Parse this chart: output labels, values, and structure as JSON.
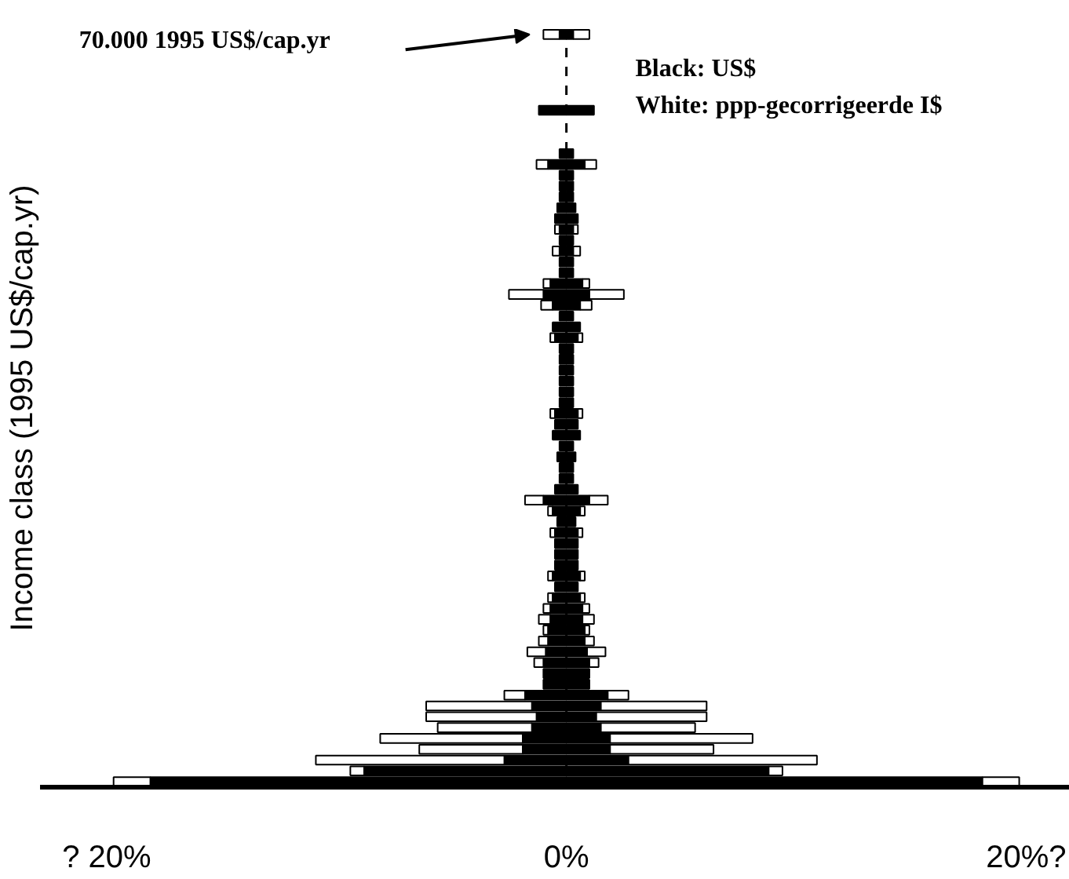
{
  "chart_data": {
    "type": "bar",
    "orientation": "horizontal",
    "stacked": true,
    "ylabel": "Income class (1995 US$/cap.yr)",
    "categories": [
      null,
      null,
      null,
      null,
      null,
      null,
      null,
      null,
      null,
      null,
      null,
      null,
      null,
      null,
      null,
      null,
      null,
      null,
      null,
      null,
      null,
      null,
      null,
      null,
      null,
      null,
      null,
      null,
      null,
      null,
      null,
      null,
      null,
      null,
      null,
      null,
      null,
      null,
      null,
      null,
      null,
      null,
      null,
      null,
      null,
      null,
      null,
      null,
      null,
      null,
      null,
      null,
      null,
      null,
      null,
      null,
      null,
      null,
      null,
      null,
      null,
      null,
      null,
      null,
      null,
      null,
      null,
      null,
      null,
      null
    ],
    "series": [
      {
        "color": "#000000",
        "values": [
          -0.3,
          null,
          null,
          null,
          null,
          null,
          null,
          -1.2,
          null,
          null,
          null,
          -0.3,
          -0.8,
          -0.3,
          -0.3,
          -0.3,
          -0.4,
          -0.5,
          -0.3,
          -0.3,
          -0.3,
          -0.3,
          -0.3,
          -0.7,
          -1.0,
          -0.6,
          -0.3,
          -0.6,
          -0.5,
          -0.3,
          -0.3,
          -0.3,
          -0.3,
          -0.3,
          -0.3,
          -0.5,
          -0.5,
          -0.6,
          -0.3,
          -0.4,
          -0.3,
          -0.3,
          -0.5,
          -1.0,
          -0.6,
          -0.4,
          -0.5,
          -0.5,
          -0.5,
          -0.5,
          -0.6,
          -0.5,
          -0.6,
          -0.7,
          -0.7,
          -0.8,
          -0.8,
          -0.9,
          -1.0,
          -1.0,
          -1.0,
          -1.8,
          -1.5,
          -1.3,
          -1.5,
          -1.9,
          -1.9,
          -2.7,
          -8.8,
          -18.1
        ]
      },
      {
        "color": "#ffffff",
        "values": [
          -0.7,
          null,
          null,
          null,
          null,
          null,
          null,
          null,
          null,
          null,
          null,
          null,
          -0.5,
          null,
          null,
          null,
          null,
          null,
          -0.2,
          null,
          -0.3,
          null,
          null,
          -0.3,
          -1.5,
          -0.5,
          null,
          null,
          -0.2,
          null,
          null,
          null,
          null,
          null,
          null,
          -0.2,
          null,
          null,
          null,
          null,
          null,
          null,
          null,
          -0.8,
          -0.2,
          null,
          -0.2,
          null,
          null,
          null,
          -0.2,
          null,
          -0.2,
          -0.3,
          -0.5,
          -0.2,
          -0.4,
          -0.8,
          -0.4,
          null,
          null,
          -0.9,
          -4.6,
          -4.8,
          -4.1,
          -6.2,
          -4.5,
          -8.2,
          -0.6,
          -1.6
        ]
      },
      {
        "color": "#000000",
        "values": [
          0.3,
          null,
          null,
          null,
          null,
          null,
          null,
          1.2,
          null,
          null,
          null,
          0.3,
          0.8,
          0.3,
          0.3,
          0.3,
          0.4,
          0.5,
          0.3,
          0.3,
          0.3,
          0.3,
          0.3,
          0.7,
          1.0,
          0.6,
          0.3,
          0.6,
          0.5,
          0.3,
          0.3,
          0.3,
          0.3,
          0.3,
          0.3,
          0.5,
          0.5,
          0.6,
          0.3,
          0.4,
          0.3,
          0.3,
          0.5,
          1.0,
          0.6,
          0.4,
          0.5,
          0.5,
          0.5,
          0.5,
          0.6,
          0.5,
          0.6,
          0.7,
          0.7,
          0.8,
          0.8,
          0.9,
          1.0,
          1.0,
          1.0,
          1.8,
          1.5,
          1.3,
          1.5,
          1.9,
          1.9,
          2.7,
          8.8,
          18.1
        ]
      },
      {
        "color": "#ffffff",
        "values": [
          0.7,
          null,
          null,
          null,
          null,
          null,
          null,
          null,
          null,
          null,
          null,
          null,
          0.5,
          null,
          null,
          null,
          null,
          null,
          0.2,
          null,
          0.3,
          null,
          null,
          0.3,
          1.5,
          0.5,
          null,
          null,
          0.2,
          null,
          null,
          null,
          null,
          null,
          null,
          0.2,
          null,
          null,
          null,
          null,
          null,
          null,
          null,
          0.8,
          0.2,
          null,
          0.2,
          null,
          null,
          null,
          0.2,
          null,
          0.2,
          0.3,
          0.5,
          0.2,
          0.4,
          0.8,
          0.4,
          null,
          null,
          0.9,
          4.6,
          4.8,
          4.1,
          6.2,
          4.5,
          8.2,
          0.6,
          1.6
        ]
      }
    ],
    "xlim": [
      -22.9,
      21.9
    ],
    "xticks": [
      {
        "value": -20,
        "label": "? 20%"
      },
      {
        "value": 0,
        "label": "0%"
      },
      {
        "value": 20,
        "label": "20%?"
      }
    ],
    "ref_lines": [
      {
        "axis": "x",
        "value": 0,
        "label": null,
        "color": "#000000",
        "line_style": "dashed"
      }
    ],
    "annotations": [
      "70.000 1995 US$/cap.yr",
      "Black: US$",
      "White: ppp-gecorrigeerde I$"
    ],
    "grid": false
  }
}
